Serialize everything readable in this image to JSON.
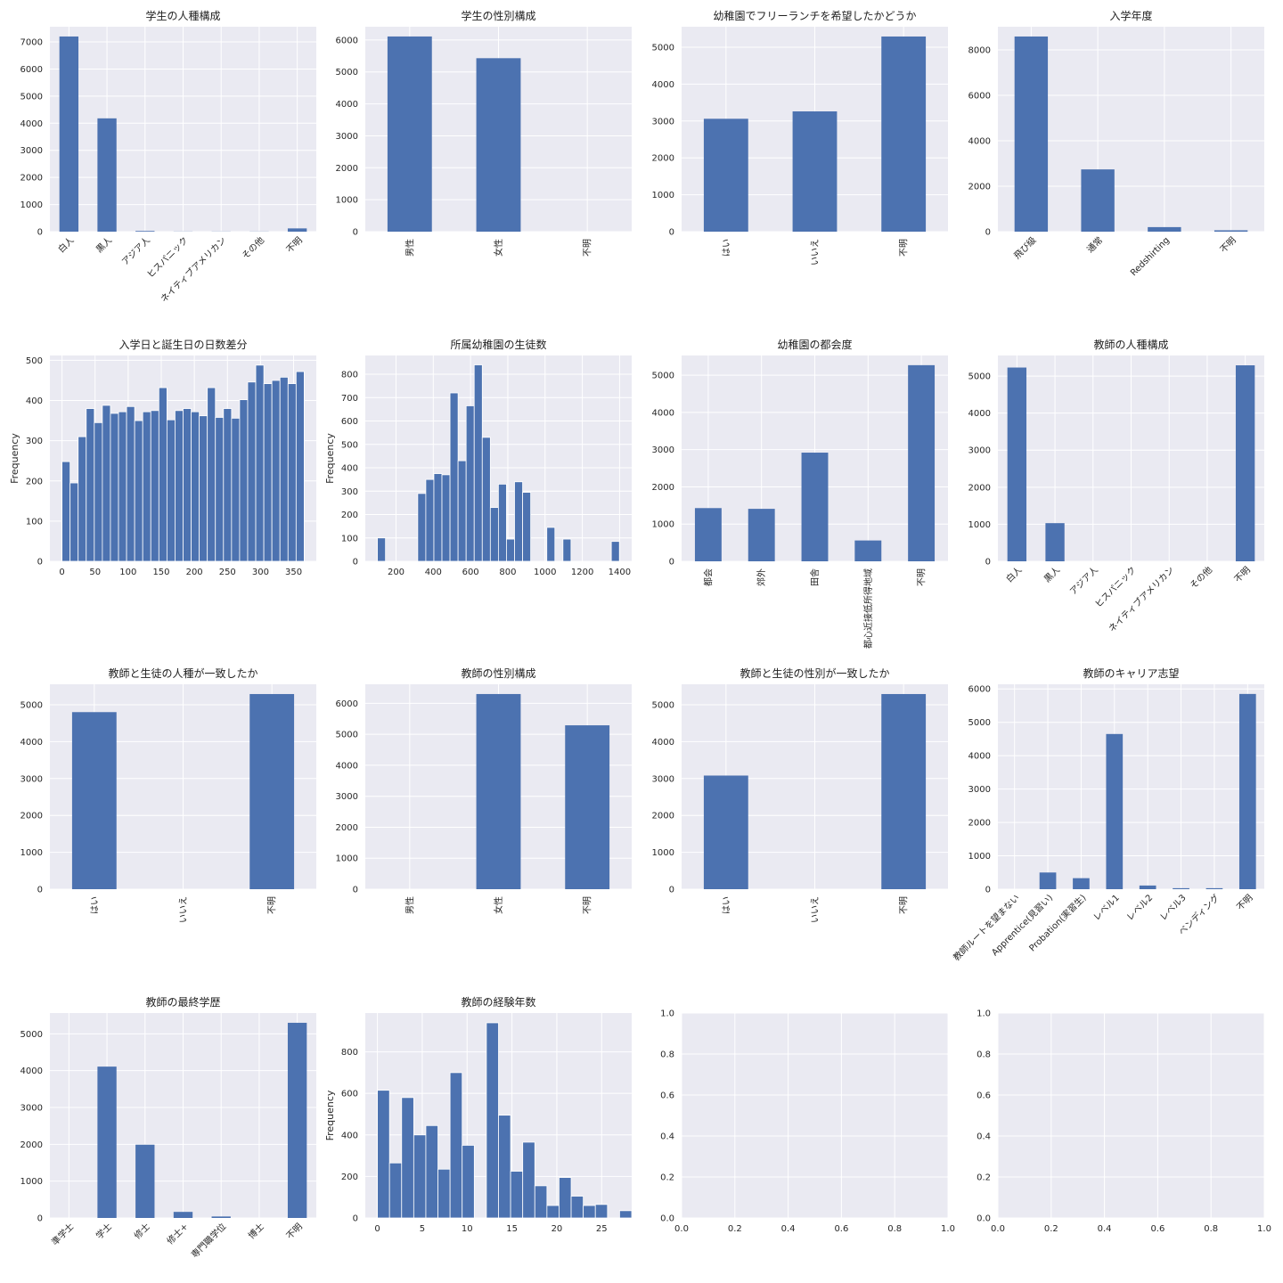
{
  "figure": {
    "background": "#ffffff",
    "axes_facecolor": "#eaeaf2",
    "grid_color": "#ffffff",
    "bar_color": "#4c72b0"
  },
  "chart_data": [
    {
      "type": "bar",
      "title": "学生の人種構成",
      "categories": [
        "白人",
        "黒人",
        "アジア人",
        "ヒスパニック",
        "ネイティブアメリカン",
        "その他",
        "不明"
      ],
      "values": [
        7200,
        4180,
        25,
        5,
        5,
        5,
        120
      ],
      "ylim": [
        0,
        7560
      ],
      "yticks": [
        0,
        1000,
        2000,
        3000,
        4000,
        5000,
        6000,
        7000
      ],
      "bar_width": 0.5,
      "xrot": 45
    },
    {
      "type": "bar",
      "title": "学生の性別構成",
      "categories": [
        "男性",
        "女性",
        "不明"
      ],
      "values": [
        6110,
        5430,
        0
      ],
      "ylim": [
        0,
        6415
      ],
      "yticks": [
        0,
        1000,
        2000,
        3000,
        4000,
        5000,
        6000
      ],
      "bar_width": 0.5,
      "xrot": 90
    },
    {
      "type": "bar",
      "title": "幼稚園でフリーランチを希望したかどうか",
      "categories": [
        "はい",
        "いいえ",
        "不明"
      ],
      "values": [
        3060,
        3260,
        5290
      ],
      "ylim": [
        0,
        5555
      ],
      "yticks": [
        0,
        1000,
        2000,
        3000,
        4000,
        5000
      ],
      "bar_width": 0.5,
      "xrot": 90
    },
    {
      "type": "bar",
      "title": "入学年度",
      "categories": [
        "飛び級",
        "通常",
        "Redshirting",
        "不明"
      ],
      "values": [
        8590,
        2740,
        200,
        60
      ],
      "ylim": [
        0,
        9020
      ],
      "yticks": [
        0,
        2000,
        4000,
        6000,
        8000
      ],
      "bar_width": 0.5,
      "xrot": 45
    },
    {
      "type": "histogram",
      "title": "入学日と誕生日の日数差分",
      "ylabel": "Frequency",
      "bin_start": 0,
      "bin_width": 12.2,
      "values": [
        248,
        195,
        310,
        380,
        345,
        388,
        368,
        372,
        385,
        350,
        372,
        375,
        432,
        352,
        375,
        380,
        372,
        362,
        432,
        358,
        380,
        356,
        402,
        446,
        488,
        442,
        450,
        458,
        442,
        472
      ],
      "xlim": [
        -18.3,
        384.3
      ],
      "ylim": [
        0,
        512
      ],
      "xticks": [
        0,
        50,
        100,
        150,
        200,
        250,
        300,
        350
      ],
      "yticks": [
        0,
        100,
        200,
        300,
        400,
        500
      ]
    },
    {
      "type": "histogram",
      "title": "所属幼稚園の生徒数",
      "ylabel": "Frequency",
      "bin_start": 100,
      "bin_width": 43.3,
      "values": [
        100,
        0,
        0,
        0,
        0,
        290,
        350,
        375,
        370,
        720,
        430,
        665,
        840,
        530,
        230,
        330,
        95,
        340,
        295,
        0,
        0,
        145,
        0,
        95,
        0,
        0,
        0,
        0,
        0,
        85
      ],
      "xlim": [
        35,
        1465
      ],
      "ylim": [
        0,
        880
      ],
      "xticks": [
        200,
        400,
        600,
        800,
        1000,
        1200,
        1400
      ],
      "yticks": [
        0,
        100,
        200,
        300,
        400,
        500,
        600,
        700,
        800
      ]
    },
    {
      "type": "bar",
      "title": "幼稚園の都会度",
      "categories": [
        "都会",
        "郊外",
        "田舎",
        "都心近接低所得地域",
        "不明"
      ],
      "values": [
        1430,
        1410,
        2920,
        560,
        5270
      ],
      "ylim": [
        0,
        5530
      ],
      "yticks": [
        0,
        1000,
        2000,
        3000,
        4000,
        5000
      ],
      "bar_width": 0.5,
      "xrot": 90
    },
    {
      "type": "bar",
      "title": "教師の人種構成",
      "categories": [
        "白人",
        "黒人",
        "アジア人",
        "ヒスパニック",
        "ネイティブアメリカン",
        "その他",
        "不明"
      ],
      "values": [
        5230,
        1030,
        0,
        0,
        0,
        0,
        5290
      ],
      "ylim": [
        0,
        5555
      ],
      "yticks": [
        0,
        1000,
        2000,
        3000,
        4000,
        5000
      ],
      "bar_width": 0.5,
      "xrot": 45
    },
    {
      "type": "bar",
      "title": "教師と生徒の人種が一致したか",
      "categories": [
        "はい",
        "いいえ",
        "不明"
      ],
      "values": [
        4800,
        0,
        5290
      ],
      "ylim": [
        0,
        5555
      ],
      "yticks": [
        0,
        1000,
        2000,
        3000,
        4000,
        5000
      ],
      "bar_width": 0.5,
      "xrot": 90
    },
    {
      "type": "bar",
      "title": "教師の性別構成",
      "categories": [
        "男性",
        "女性",
        "不明"
      ],
      "values": [
        0,
        6300,
        5290
      ],
      "ylim": [
        0,
        6615
      ],
      "yticks": [
        0,
        1000,
        2000,
        3000,
        4000,
        5000,
        6000
      ],
      "bar_width": 0.5,
      "xrot": 90
    },
    {
      "type": "bar",
      "title": "教師と生徒の性別が一致したか",
      "categories": [
        "はい",
        "いいえ",
        "不明"
      ],
      "values": [
        3080,
        0,
        5290
      ],
      "ylim": [
        0,
        5555
      ],
      "yticks": [
        0,
        1000,
        2000,
        3000,
        4000,
        5000
      ],
      "bar_width": 0.5,
      "xrot": 90
    },
    {
      "type": "bar",
      "title": "教師のキャリア志望",
      "categories": [
        "教師ルートを望まない",
        "Apprentice(見習い)",
        "Probation(実習生)",
        "レベル1",
        "レベル2",
        "レベル3",
        "ベンディング",
        "不明"
      ],
      "values": [
        0,
        500,
        330,
        4650,
        110,
        30,
        30,
        5850
      ],
      "ylim": [
        0,
        6140
      ],
      "yticks": [
        0,
        1000,
        2000,
        3000,
        4000,
        5000,
        6000
      ],
      "bar_width": 0.5,
      "xrot": 45
    },
    {
      "type": "bar",
      "title": "教師の最終学歴",
      "categories": [
        "準学士",
        "学士",
        "修士",
        "修士+",
        "専門職学位",
        "博士",
        "不明"
      ],
      "values": [
        0,
        4110,
        1990,
        165,
        40,
        0,
        5300
      ],
      "ylim": [
        0,
        5565
      ],
      "yticks": [
        0,
        1000,
        2000,
        3000,
        4000,
        5000
      ],
      "bar_width": 0.5,
      "xrot": 45
    },
    {
      "type": "histogram",
      "title": "教師の経験年数",
      "ylabel": "Frequency",
      "bin_start": 0,
      "bin_width": 1.35,
      "values": [
        615,
        265,
        580,
        400,
        445,
        235,
        700,
        350,
        0,
        940,
        495,
        225,
        365,
        155,
        60,
        195,
        105,
        60,
        65,
        0,
        35
      ],
      "xlim": [
        -1.35,
        28.35
      ],
      "ylim": [
        0,
        987
      ],
      "xticks": [
        0,
        5,
        10,
        15,
        20,
        25
      ],
      "yticks": [
        0,
        200,
        400,
        600,
        800
      ]
    },
    {
      "type": "empty",
      "xlim": [
        0,
        1
      ],
      "ylim": [
        0,
        1
      ],
      "xticks": [
        "0.0",
        "0.2",
        "0.4",
        "0.6",
        "0.8",
        "1.0"
      ],
      "yticks": [
        "0.0",
        "0.2",
        "0.4",
        "0.6",
        "0.8",
        "1.0"
      ]
    },
    {
      "type": "empty",
      "xlim": [
        0,
        1
      ],
      "ylim": [
        0,
        1
      ],
      "xticks": [
        "0.0",
        "0.2",
        "0.4",
        "0.6",
        "0.8",
        "1.0"
      ],
      "yticks": [
        "0.0",
        "0.2",
        "0.4",
        "0.6",
        "0.8",
        "1.0"
      ]
    }
  ]
}
